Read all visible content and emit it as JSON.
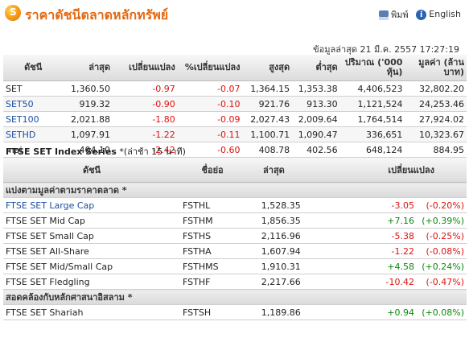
{
  "header": {
    "title": "ราคาดัชนีตลาดหลักทรัพย์",
    "print_label": "พิมพ์",
    "english_label": "English"
  },
  "updated": "ข้อมูลล่าสุด 21 มี.ค. 2557 17:27:19",
  "index_table": {
    "columns": [
      "ดัชนี",
      "ล่าสุด",
      "เปลี่ยนแปลง",
      "%เปลี่ยนแปลง",
      "สูงสุด",
      "ต่ำสุด",
      "ปริมาณ ('000 หุ้น)",
      "มูลค่า (ล้านบาท)"
    ],
    "rows": [
      {
        "name": "SET",
        "last": "1,360.50",
        "change": "-0.97",
        "pct": "-0.07",
        "high": "1,364.15",
        "low": "1,353.38",
        "volume": "4,406,523",
        "value": "32,802.20"
      },
      {
        "name": "SET50",
        "last": "919.32",
        "change": "-0.90",
        "pct": "-0.10",
        "high": "921.76",
        "low": "913.30",
        "volume": "1,121,524",
        "value": "24,253.46"
      },
      {
        "name": "SET100",
        "last": "2,021.88",
        "change": "-1.80",
        "pct": "-0.09",
        "high": "2,027.43",
        "low": "2,009.64",
        "volume": "1,764,514",
        "value": "27,924.02"
      },
      {
        "name": "SETHD",
        "last": "1,097.91",
        "change": "-1.22",
        "pct": "-0.11",
        "high": "1,100.71",
        "low": "1,090.47",
        "volume": "336,651",
        "value": "10,323.67"
      },
      {
        "name": "mai",
        "last": "404.10",
        "change": "-2.42",
        "pct": "-0.60",
        "high": "408.78",
        "low": "402.56",
        "volume": "648,124",
        "value": "884.95"
      }
    ]
  },
  "ftse": {
    "title": "FTSE SET Index Series",
    "note": "*(ล่าช้า 15 นาที)",
    "columns": [
      "ดัชนี",
      "ชื่อย่อ",
      "ล่าสุด",
      "เปลี่ยนแปลง"
    ],
    "group1": "แบ่งตามมูลค่าตามราคาตลาด *",
    "group2": "สอดคล้องกับหลักศาสนาอิสลาม *",
    "rows1": [
      {
        "name": "FTSE SET Large Cap",
        "code": "FSTHL",
        "last": "1,528.35",
        "change": "-3.05",
        "pct": "(-0.20%)"
      },
      {
        "name": "FTSE SET Mid Cap",
        "code": "FSTHM",
        "last": "1,856.35",
        "change": "+7.16",
        "pct": "(+0.39%)"
      },
      {
        "name": "FTSE SET Small Cap",
        "code": "FSTHS",
        "last": "2,116.96",
        "change": "-5.38",
        "pct": "(-0.25%)"
      },
      {
        "name": "FTSE SET All-Share",
        "code": "FSTHA",
        "last": "1,607.94",
        "change": "-1.22",
        "pct": "(-0.08%)"
      },
      {
        "name": "FTSE SET Mid/Small Cap",
        "code": "FSTHMS",
        "last": "1,910.31",
        "change": "+4.58",
        "pct": "(+0.24%)"
      },
      {
        "name": "FTSE SET Fledgling",
        "code": "FSTHF",
        "last": "2,217.66",
        "change": "-10.42",
        "pct": "(-0.47%)"
      }
    ],
    "rows2": [
      {
        "name": "FTSE SET Shariah",
        "code": "FSTSH",
        "last": "1,189.86",
        "change": "+0.94",
        "pct": "(+0.08%)"
      }
    ]
  },
  "colors": {
    "accent": "#e36a12",
    "negative": "#e01010",
    "positive": "#0a8a0a",
    "link": "#1a4ea3"
  }
}
